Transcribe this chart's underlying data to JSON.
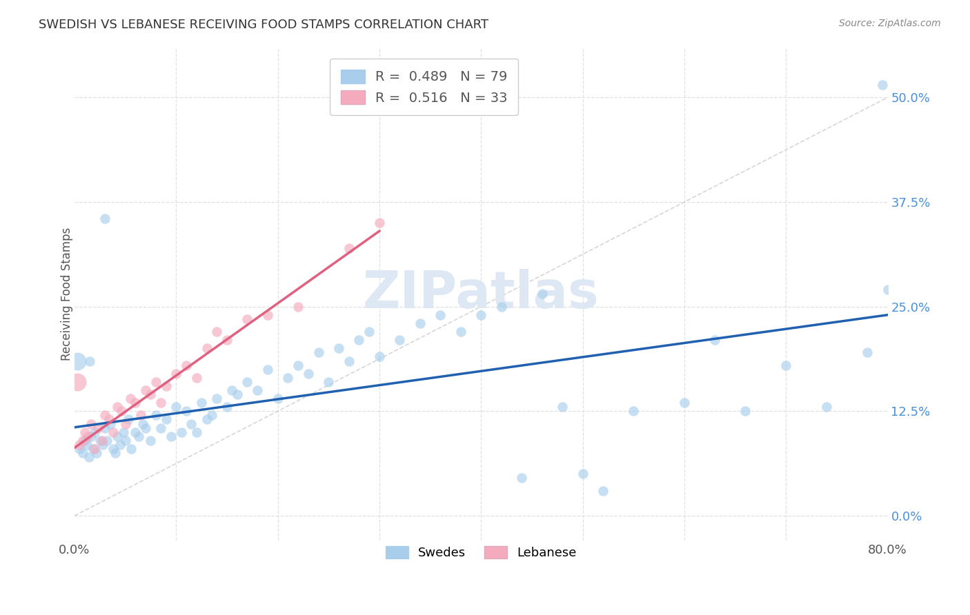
{
  "title": "SWEDISH VS LEBANESE RECEIVING FOOD STAMPS CORRELATION CHART",
  "source": "Source: ZipAtlas.com",
  "ylabel": "Receiving Food Stamps",
  "ytick_labels": [
    "0.0%",
    "12.5%",
    "25.0%",
    "37.5%",
    "50.0%"
  ],
  "ytick_values": [
    0.0,
    12.5,
    25.0,
    37.5,
    50.0
  ],
  "xlim": [
    0.0,
    80.0
  ],
  "ylim": [
    -3.0,
    56.0
  ],
  "swedes_R": 0.489,
  "swedes_N": 79,
  "lebanese_R": 0.516,
  "lebanese_N": 33,
  "swede_color": "#A8CEEC",
  "lebanese_color": "#F4ABBE",
  "swede_line_color": "#2060B0",
  "lebanese_line_color": "#E06080",
  "diagonal_color": "#CCCCCC",
  "background_color": "#FFFFFF",
  "grid_color": "#DDDDDD",
  "swedes_x": [
    0.5,
    0.8,
    1.0,
    1.2,
    1.4,
    1.6,
    1.8,
    2.0,
    2.2,
    2.5,
    2.8,
    3.0,
    3.2,
    3.5,
    3.8,
    4.0,
    4.2,
    4.5,
    4.8,
    5.0,
    5.3,
    5.6,
    6.0,
    6.3,
    6.7,
    7.0,
    7.5,
    8.0,
    8.5,
    9.0,
    9.5,
    10.0,
    10.5,
    11.0,
    11.5,
    12.0,
    12.5,
    13.0,
    13.5,
    14.0,
    15.0,
    15.5,
    16.0,
    17.0,
    18.0,
    19.0,
    20.0,
    21.0,
    22.0,
    23.0,
    24.0,
    25.0,
    26.0,
    27.0,
    28.0,
    29.0,
    30.0,
    32.0,
    34.0,
    36.0,
    38.0,
    40.0,
    42.0,
    44.0,
    46.0,
    48.0,
    50.0,
    52.0,
    55.0,
    60.0,
    63.0,
    66.0,
    70.0,
    74.0,
    78.0,
    80.0,
    1.5,
    3.0,
    79.5
  ],
  "swedes_y": [
    8.0,
    7.5,
    9.0,
    8.5,
    7.0,
    9.5,
    8.0,
    10.0,
    7.5,
    9.0,
    8.5,
    10.5,
    9.0,
    11.0,
    8.0,
    7.5,
    9.5,
    8.5,
    10.0,
    9.0,
    11.5,
    8.0,
    10.0,
    9.5,
    11.0,
    10.5,
    9.0,
    12.0,
    10.5,
    11.5,
    9.5,
    13.0,
    10.0,
    12.5,
    11.0,
    10.0,
    13.5,
    11.5,
    12.0,
    14.0,
    13.0,
    15.0,
    14.5,
    16.0,
    15.0,
    17.5,
    14.0,
    16.5,
    18.0,
    17.0,
    19.5,
    16.0,
    20.0,
    18.5,
    21.0,
    22.0,
    19.0,
    21.0,
    23.0,
    24.0,
    22.0,
    24.0,
    25.0,
    4.5,
    26.5,
    13.0,
    5.0,
    3.0,
    12.5,
    13.5,
    21.0,
    12.5,
    18.0,
    13.0,
    19.5,
    27.0,
    18.5,
    35.5,
    51.5
  ],
  "lebanese_x": [
    0.5,
    0.8,
    1.0,
    1.3,
    1.6,
    2.0,
    2.3,
    2.7,
    3.0,
    3.4,
    3.8,
    4.2,
    4.6,
    5.0,
    5.5,
    6.0,
    6.5,
    7.0,
    7.5,
    8.0,
    8.5,
    9.0,
    10.0,
    11.0,
    12.0,
    13.0,
    14.0,
    15.0,
    17.0,
    19.0,
    22.0,
    27.0,
    30.0
  ],
  "lebanese_y": [
    8.5,
    9.0,
    10.0,
    9.5,
    11.0,
    8.0,
    10.5,
    9.0,
    12.0,
    11.5,
    10.0,
    13.0,
    12.5,
    11.0,
    14.0,
    13.5,
    12.0,
    15.0,
    14.5,
    16.0,
    13.5,
    15.5,
    17.0,
    18.0,
    16.5,
    20.0,
    22.0,
    21.0,
    23.5,
    24.0,
    25.0,
    32.0,
    35.0
  ],
  "swede_marker_size": 110,
  "lebanese_marker_size": 110,
  "swede_large_x": [
    0.3
  ],
  "swede_large_y": [
    18.5
  ],
  "lebanese_large_x": [
    0.3
  ],
  "lebanese_large_y": [
    16.0
  ]
}
